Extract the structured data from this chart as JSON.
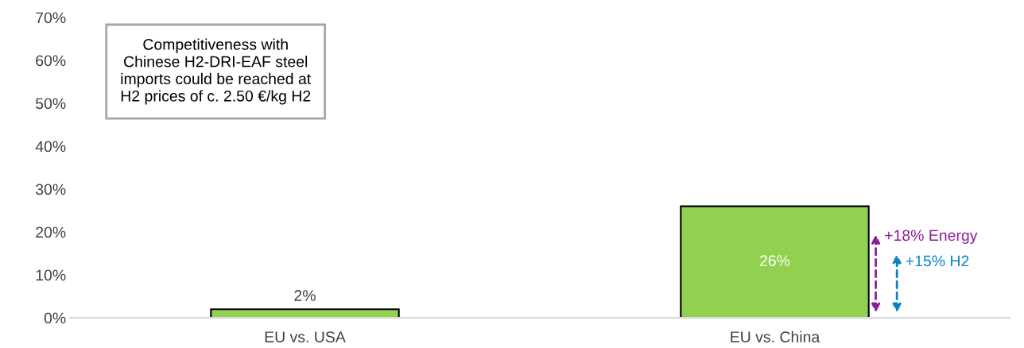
{
  "chart_data": {
    "type": "bar",
    "categories": [
      "EU vs. USA",
      "EU vs. China"
    ],
    "values": [
      2,
      26
    ],
    "color": "#92d050",
    "data_labels": true,
    "value_labels": [
      "2%",
      "26%"
    ],
    "ylim": [
      0,
      70
    ],
    "yticks": [
      {
        "value": 0,
        "label": "0%"
      },
      {
        "value": 10,
        "label": "10%"
      },
      {
        "value": 20,
        "label": "20%"
      },
      {
        "value": 30,
        "label": "30%"
      },
      {
        "value": 40,
        "label": "40%"
      },
      {
        "value": 50,
        "label": "50%"
      },
      {
        "value": 60,
        "label": "60%"
      },
      {
        "value": 70,
        "label": "70%"
      }
    ],
    "grid": false,
    "annotations": [
      "Competitiveness with\nChinese H2-DRI-EAF steel\nimports could be reached at\nH2 prices of c. 2.50 €/kg H2",
      "+18% Energy",
      "+15% H2"
    ]
  }
}
